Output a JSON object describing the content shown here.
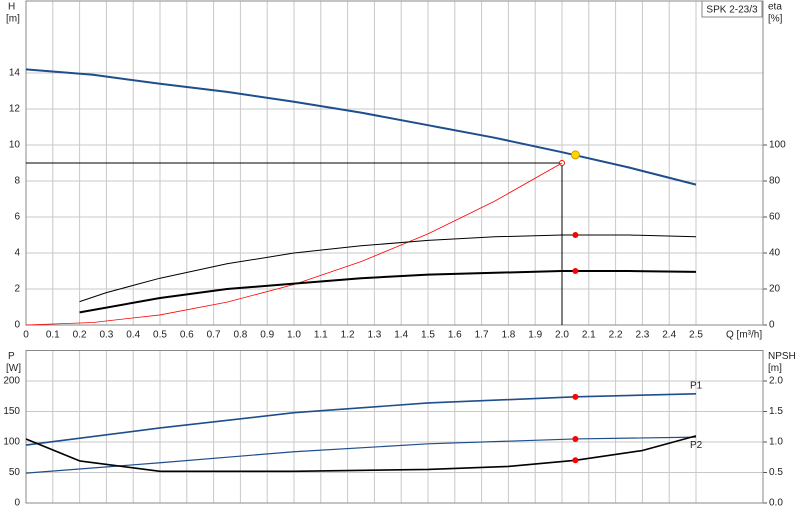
{
  "chart_data": [
    {
      "type": "line",
      "title": "SPK 2-23/3",
      "ylabel": "H",
      "ylabel_unit": "[m]",
      "y2label": "eta",
      "y2label_unit": "[%]",
      "xlabel": "Q [m³/h]",
      "xlim": [
        0,
        2.75
      ],
      "ylim": [
        0,
        18
      ],
      "y2lim": [
        0,
        180
      ],
      "grid": true,
      "xticks": [
        0,
        0.1,
        0.2,
        0.3,
        0.4,
        0.5,
        0.6,
        0.7,
        0.8,
        0.9,
        {
          "value": 1,
          "label": "1.0"
        },
        1.1,
        1.2,
        1.3,
        1.4,
        1.5,
        1.6,
        1.7,
        1.8,
        1.9,
        {
          "value": 2,
          "label": "2.0"
        },
        2.1,
        2.2,
        2.3,
        2.4,
        2.5
      ],
      "yticks": [
        0,
        2,
        4,
        6,
        8,
        10,
        12,
        14
      ],
      "y2ticks": [
        0,
        20,
        40,
        60,
        80,
        100
      ],
      "series": [
        {
          "color": "#1f4e8c",
          "width": 2,
          "x": [
            0,
            0.25,
            0.5,
            0.75,
            1,
            1.25,
            1.5,
            1.75,
            2,
            2.25,
            2.5
          ],
          "values": [
            14.2,
            13.9,
            13.4,
            12.95,
            12.4,
            11.8,
            11.1,
            10.4,
            9.6,
            8.75,
            7.8
          ]
        },
        {
          "color": "#ff0000",
          "width": 0.8,
          "x": [
            0,
            0.25,
            0.5,
            0.75,
            1,
            1.25,
            1.5,
            1.75,
            2
          ],
          "values": [
            0,
            0.14,
            0.56,
            1.27,
            2.25,
            3.52,
            5.06,
            6.89,
            9.0
          ]
        },
        {
          "color": "#000000",
          "width": 1,
          "axis": "y2",
          "x": [
            0.2,
            0.3,
            0.4,
            0.5,
            0.75,
            1,
            1.25,
            1.5,
            1.75,
            2,
            2.25,
            2.5
          ],
          "values": [
            13,
            18,
            22,
            26,
            34,
            40,
            44,
            47,
            49,
            50,
            50,
            49
          ]
        },
        {
          "color": "#000000",
          "width": 2,
          "axis": "y2",
          "x": [
            0.2,
            0.5,
            0.75,
            1,
            1.25,
            1.5,
            1.75,
            2,
            2.25,
            2.5
          ],
          "values": [
            7,
            15,
            20,
            23,
            26,
            28,
            29,
            30,
            30,
            29.5
          ]
        }
      ],
      "reference_point": {
        "x": 2.0,
        "y": 9.0,
        "color": "#ff0000"
      },
      "points": [
        {
          "x": 2.05,
          "y": 9.45,
          "color": "#ffd700"
        },
        {
          "x": 2.05,
          "y": 50,
          "axis": "y2",
          "color": "#ff0000"
        },
        {
          "x": 2.05,
          "y": 30,
          "axis": "y2",
          "color": "#ff0000"
        }
      ]
    },
    {
      "type": "line",
      "ylabel": "P",
      "ylabel_unit": "[W]",
      "y2label": "NPSH",
      "y2label_unit": "[m]",
      "xlim": [
        0,
        2.75
      ],
      "ylim": [
        0,
        250
      ],
      "y2lim": [
        0,
        2.5
      ],
      "grid": true,
      "xticks": [
        0,
        0.1,
        0.2,
        0.3,
        0.4,
        0.5,
        0.6,
        0.7,
        0.8,
        0.9,
        1,
        1.1,
        1.2,
        1.3,
        1.4,
        1.5,
        1.6,
        1.7,
        1.8,
        1.9,
        2,
        2.1,
        2.2,
        2.3,
        2.4,
        2.5
      ],
      "yticks": [
        0,
        50,
        100,
        150,
        200
      ],
      "y2ticks": [
        {
          "value": 0,
          "label": "0.0"
        },
        0.5,
        {
          "value": 1,
          "label": "1.0"
        },
        1.5,
        {
          "value": 2,
          "label": "2.0"
        }
      ],
      "series": [
        {
          "name": "P1",
          "color": "#1f4e8c",
          "width": 1.6,
          "x": [
            0,
            0.5,
            1,
            1.5,
            2.05,
            2.5
          ],
          "values": [
            95,
            123,
            148,
            164,
            174,
            179
          ]
        },
        {
          "name": "P2",
          "color": "#1f4e8c",
          "width": 1.2,
          "x": [
            0,
            0.5,
            1,
            1.5,
            2.05,
            2.5
          ],
          "values": [
            49,
            66,
            84,
            97,
            105,
            108
          ]
        },
        {
          "color": "#000000",
          "width": 1.6,
          "axis": "y2",
          "x": [
            0,
            0.2,
            0.5,
            1,
            1.5,
            1.8,
            2.05,
            2.3,
            2.5
          ],
          "values": [
            1.05,
            0.69,
            0.52,
            0.52,
            0.55,
            0.6,
            0.7,
            0.86,
            1.1
          ]
        }
      ],
      "points": [
        {
          "x": 2.05,
          "y": 174,
          "color": "#ff0000"
        },
        {
          "x": 2.05,
          "y": 105,
          "color": "#ff0000"
        },
        {
          "x": 2.05,
          "y": 0.7,
          "axis": "y2",
          "color": "#ff0000"
        }
      ]
    }
  ]
}
